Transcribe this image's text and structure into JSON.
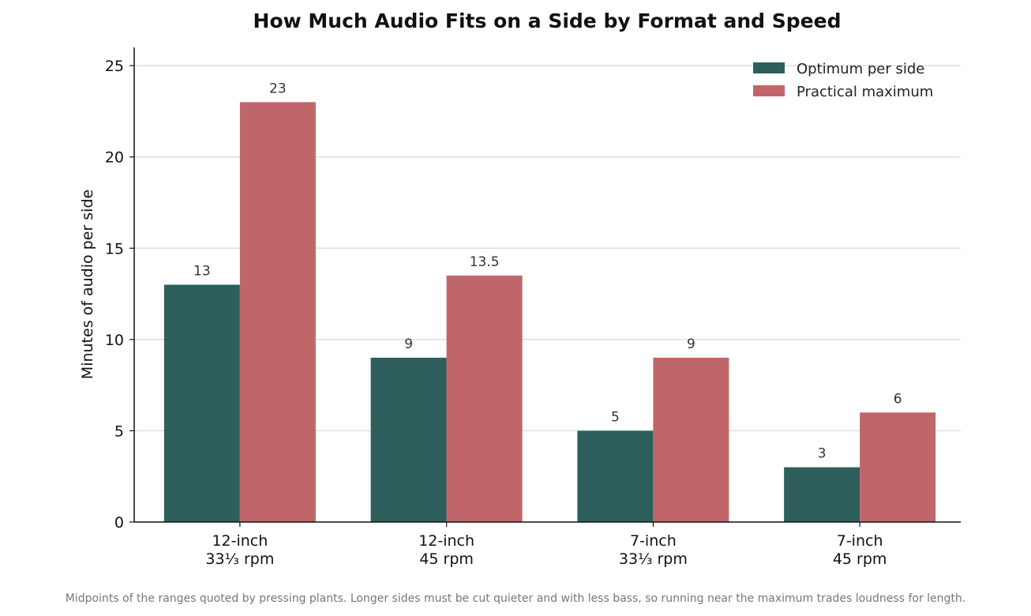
{
  "chart_data": {
    "type": "bar",
    "title": "How Much Audio Fits on a Side by Format and Speed",
    "xlabel": "",
    "ylabel": "Minutes of audio per side",
    "categories": [
      [
        "12-inch",
        "33⅓ rpm"
      ],
      [
        "12-inch",
        "45 rpm"
      ],
      [
        "7-inch",
        "33⅓ rpm"
      ],
      [
        "7-inch",
        "45 rpm"
      ]
    ],
    "series": [
      {
        "name": "Optimum per side",
        "values": [
          13,
          9,
          5,
          3
        ],
        "labels": [
          "13",
          "9",
          "5",
          "3"
        ],
        "color": "#2e5f5d"
      },
      {
        "name": "Practical maximum",
        "values": [
          23,
          13.5,
          9,
          6
        ],
        "labels": [
          "23",
          "13.5",
          "9",
          "6"
        ],
        "color": "#c0666a"
      }
    ],
    "ylim": [
      0,
      26
    ],
    "yticks": [
      0,
      5,
      10,
      15,
      20,
      25
    ],
    "grid": "horizontal",
    "legend_position": "top-right",
    "caption": "Midpoints of the ranges quoted by pressing plants. Longer sides must be cut quieter and with less bass, so running near the maximum trades loudness for length."
  }
}
